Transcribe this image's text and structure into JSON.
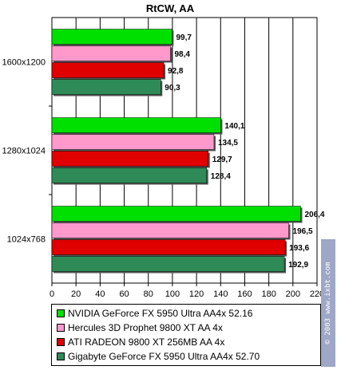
{
  "chart_data": {
    "type": "bar",
    "orientation": "horizontal",
    "title": "RtCW, AA",
    "categories": [
      "1600x1200",
      "1280x1024",
      "1024x768"
    ],
    "series": [
      {
        "name": "NVIDIA GeForce FX 5950 Ultra AA4x 52.16",
        "color": "#00e000",
        "values": [
          99.7,
          140.1,
          206.4
        ],
        "labels": [
          "99,7",
          "140,1",
          "206,4"
        ]
      },
      {
        "name": "Hercules 3D Prophet 9800 XT AA 4x",
        "color": "#ff99cc",
        "values": [
          98.4,
          134.5,
          196.5
        ],
        "labels": [
          "98,4",
          "134,5",
          "196,5"
        ]
      },
      {
        "name": "ATI RADEON 9800 XT 256MB AA 4x",
        "color": "#e00000",
        "values": [
          92.8,
          129.7,
          193.6
        ],
        "labels": [
          "92,8",
          "129,7",
          "193,6"
        ]
      },
      {
        "name": "Gigabyte GeForce FX 5950 Ultra AA4x 52.70",
        "color": "#2e8b57",
        "values": [
          90.3,
          128.4,
          192.9
        ],
        "labels": [
          "90,3",
          "128,4",
          "192,9"
        ]
      }
    ],
    "xlim": [
      0,
      220
    ],
    "xticks": [
      0,
      20,
      40,
      60,
      80,
      100,
      120,
      140,
      160,
      180,
      200,
      220
    ],
    "grid": true,
    "legend_position": "bottom"
  },
  "watermark": "© 2003 www.ixbt.com"
}
